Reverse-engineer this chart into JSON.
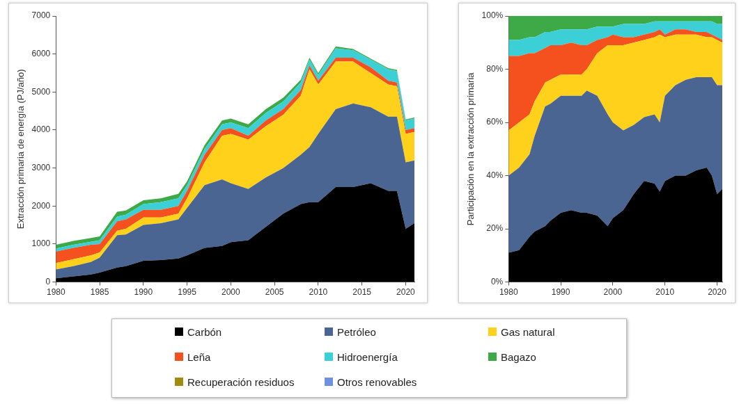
{
  "chart_data": [
    {
      "type": "area",
      "ylabel": "Extracción primaria de energía (PJ/año)",
      "stacked": true,
      "marker": "none",
      "legend": "bottom",
      "x": [
        1980,
        1982,
        1984,
        1985,
        1987,
        1988,
        1990,
        1992,
        1994,
        1995,
        1997,
        1999,
        2000,
        2002,
        2004,
        2006,
        2008,
        2009,
        2010,
        2012,
        2014,
        2016,
        2018,
        2019,
        2020,
        2021
      ],
      "xlim": [
        1980,
        2021
      ],
      "xticks": [
        1980,
        1985,
        1990,
        1995,
        2000,
        2005,
        2010,
        2015,
        2020
      ],
      "ylim": [
        0,
        7000
      ],
      "yticks": [
        0,
        1000,
        2000,
        3000,
        4000,
        5000,
        6000,
        7000
      ],
      "series": [
        {
          "name": "Carbón",
          "color": "#000000",
          "values": [
            100,
            150,
            200,
            250,
            380,
            420,
            560,
            580,
            620,
            700,
            900,
            950,
            1050,
            1100,
            1450,
            1800,
            2050,
            2100,
            2100,
            2500,
            2500,
            2600,
            2400,
            2400,
            1400,
            1550
          ]
        },
        {
          "name": "Petróleo",
          "color": "#4a6591",
          "values": [
            230,
            270,
            330,
            390,
            850,
            830,
            940,
            970,
            1030,
            1250,
            1650,
            1750,
            1550,
            1350,
            1300,
            1200,
            1300,
            1450,
            1800,
            2050,
            2200,
            2000,
            1950,
            1950,
            1750,
            1650
          ]
        },
        {
          "name": "Gas natural",
          "color": "#ffd11a",
          "values": [
            170,
            180,
            170,
            140,
            120,
            150,
            200,
            150,
            150,
            250,
            600,
            1150,
            1300,
            1300,
            1350,
            1400,
            1550,
            2050,
            1300,
            1250,
            1100,
            900,
            850,
            800,
            750,
            750
          ]
        },
        {
          "name": "Leña",
          "color": "#f4511e",
          "values": [
            300,
            300,
            280,
            220,
            250,
            250,
            200,
            200,
            200,
            200,
            200,
            150,
            150,
            100,
            150,
            150,
            150,
            100,
            100,
            100,
            100,
            150,
            100,
            100,
            100,
            100
          ]
        },
        {
          "name": "Hidroenergía",
          "color": "#3dcfd6",
          "values": [
            80,
            80,
            80,
            100,
            120,
            120,
            150,
            200,
            200,
            150,
            150,
            150,
            150,
            200,
            200,
            200,
            200,
            150,
            150,
            250,
            200,
            200,
            300,
            300,
            250,
            250
          ]
        },
        {
          "name": "Bagazo",
          "color": "#3daa47",
          "values": [
            100,
            100,
            100,
            100,
            130,
            110,
            100,
            100,
            120,
            100,
            100,
            100,
            100,
            100,
            100,
            100,
            70,
            50,
            50,
            50,
            30,
            30,
            30,
            30,
            30,
            30
          ]
        },
        {
          "name": "Recuperación residuos",
          "color": "#a08a10",
          "values": [
            null,
            null,
            null,
            null,
            null,
            null,
            null,
            null,
            null,
            null,
            null,
            null,
            null,
            null,
            null,
            null,
            null,
            null,
            null,
            null,
            null,
            null,
            null,
            null,
            null,
            null
          ]
        },
        {
          "name": "Otros renovables",
          "color": "#6f8fe0",
          "values": [
            null,
            null,
            null,
            null,
            null,
            null,
            null,
            null,
            null,
            null,
            null,
            null,
            null,
            null,
            null,
            null,
            null,
            null,
            null,
            null,
            null,
            null,
            null,
            null,
            null,
            null
          ]
        }
      ]
    },
    {
      "type": "area",
      "ylabel": "Participación en la extracción primaria",
      "stacked": true,
      "marker": "none",
      "x": [
        1980,
        1982,
        1984,
        1985,
        1987,
        1988,
        1990,
        1992,
        1994,
        1995,
        1997,
        1999,
        2000,
        2002,
        2004,
        2006,
        2008,
        2009,
        2010,
        2012,
        2014,
        2016,
        2018,
        2019,
        2020,
        2021
      ],
      "xlim": [
        1980,
        2021
      ],
      "xticks": [
        1980,
        1990,
        2000,
        2010,
        2020
      ],
      "ylim": [
        0,
        100
      ],
      "yticks": [
        {
          "value": 0,
          "label": "0%"
        },
        {
          "value": 20,
          "label": "20%"
        },
        {
          "value": 40,
          "label": "40%"
        },
        {
          "value": 60,
          "label": "60%"
        },
        {
          "value": 80,
          "label": "80%"
        },
        {
          "value": 100,
          "label": "100%"
        }
      ],
      "series": [
        {
          "color": "#000000",
          "values": [
            11,
            12,
            17,
            19,
            21,
            23,
            26,
            27,
            26,
            26,
            25,
            21,
            24,
            27,
            33,
            38,
            37,
            34,
            38,
            40,
            40,
            42,
            43,
            40,
            33,
            35
          ]
        },
        {
          "color": "#4a6591",
          "values": [
            29,
            31,
            31,
            36,
            45,
            44,
            44,
            43,
            44,
            46,
            45,
            42,
            36,
            30,
            26,
            24,
            26,
            26,
            32,
            34,
            36,
            35,
            34,
            37,
            41,
            39
          ]
        },
        {
          "color": "#ffd11a",
          "values": [
            17,
            17,
            15,
            13,
            9,
            9,
            8,
            8,
            8,
            8,
            16,
            26,
            29,
            32,
            31,
            29,
            29,
            33,
            22,
            19,
            17,
            16,
            15,
            15,
            17,
            16
          ]
        },
        {
          "color": "#f4511e",
          "values": [
            28,
            25,
            23,
            18,
            13,
            13,
            11,
            12,
            11,
            9,
            5,
            3,
            4,
            3,
            2,
            2,
            2,
            2,
            1,
            2,
            2,
            1,
            2,
            1,
            1,
            1
          ]
        },
        {
          "color": "#3dcfd6",
          "values": [
            6,
            6,
            6,
            6,
            6,
            5,
            6,
            5,
            6,
            6,
            5,
            4,
            3,
            5,
            5,
            4,
            4,
            3,
            5,
            3,
            3,
            4,
            4,
            5,
            5,
            6
          ]
        },
        {
          "color": "#3daa47",
          "values": [
            9,
            9,
            8,
            8,
            6,
            6,
            5,
            5,
            5,
            5,
            4,
            4,
            4,
            3,
            3,
            3,
            2,
            2,
            2,
            2,
            2,
            2,
            2,
            2,
            3,
            3
          ]
        }
      ]
    }
  ]
}
